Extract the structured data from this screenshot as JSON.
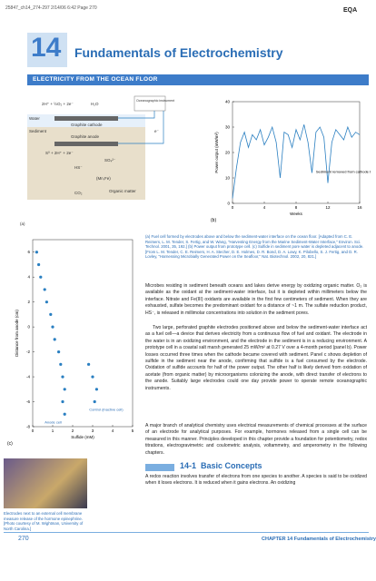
{
  "header": {
    "slug": "25847_ch14_274-297  2/14/06  6:42  Page 270",
    "code": "EQA"
  },
  "chapter": {
    "number": "14",
    "title": "Fundamentals of Electrochemistry"
  },
  "box": {
    "title": "ELECTRICITY FROM THE OCEAN FLOOR",
    "diagram": {
      "panel": "(a)",
      "labels": [
        "2H⁺ + ½O₂ + 2e⁻",
        "H₂O",
        "Water",
        "Sediment",
        "Graphite cathode",
        "Graphite anode",
        "S⁰ + 2H⁺ + 2e⁻",
        "HS⁻",
        "SO₄²⁻",
        "(Mn,Fe)",
        "CO₂",
        "Organic matter",
        "Oceanographic instrument",
        "e⁻"
      ]
    },
    "caption": "(a) Fuel cell formed by electrodes above and below the sediment-water interface on the ocean floor. [Adapted from C. E. Reimers, L. M. Tender, S. Fertig, and W. Wang, \"Harvesting Energy from the Marine Sediment-Water Interface,\" Environ. Sci. Technol. 2001, 35, 192.] (b) Power output from prototype cell. (c) Sulfide in sediment pore water is depleted adjacent to anode. [From L. M. Tender, C. E. Reimers, H. A. Stecher, D. E. Holmes, D. R. Bond, D. A. Lowy, K. Pilobello, S. J. Fertig, and D. R. Lovley, \"Harnessing Microbially Generated Power on the Seafloor,\" Nat. Biotechnol. 2002, 20, 821.]",
    "paragraphs": [
      "Microbes residing in sediment beneath oceans and lakes derive energy by oxidizing organic matter. O₂ is available as the oxidant at the sediment-water interface, but it is depleted within millimeters below the interface. Nitrate and Fe(III) oxidants are available in the first few centimeters of sediment. When they are exhausted, sulfate becomes the predominant oxidant for a distance of ~1 m. The sulfate reduction product, HS⁻, is released in millimolar concentrations into solution in the sediment pores.",
      "Two large, perforated graphite electrodes positioned above and below the sediment-water interface act as a fuel cell—a device that derives electricity from a continuous flow of fuel and oxidant. The electrode in the water is in an oxidizing environment, and the electrode in the sediment is in a reducing environment. A prototype cell in a coastal salt marsh generated 25 mW/m² at 0.27 V over a 4-month period (panel b). Power losses occurred three times when the cathode became covered with sediment. Panel c shows depletion of sulfide in the sediment near the anode, confirming that sulfide is a fuel consumed by the electrode. Oxidation of sulfide accounts for half of the power output. The other half is likely derived from oxidation of acetate (from organic matter) by microorganisms colonizing the anode, with direct transfer of electrons to the anode. Suitably large electrodes could one day provide power to operate remote oceanographic instruments."
    ]
  },
  "chart_data": [
    {
      "type": "line",
      "panel": "(b)",
      "ylabel": "Power output (mW/m²)",
      "xlabel": "Weeks",
      "annotation": "Sediment removed from cathode by diver",
      "color": "#2a7fc1",
      "x": [
        0,
        0.5,
        1,
        1.5,
        2,
        2.5,
        3,
        3.5,
        4,
        4.5,
        5,
        5.5,
        6,
        6.5,
        7,
        7.5,
        8,
        8.5,
        9,
        9.5,
        10,
        10.5,
        11,
        11.5,
        12,
        12.5,
        13,
        13.5,
        14,
        14.5,
        15,
        15.5,
        16
      ],
      "values": [
        2,
        14,
        24,
        28,
        22,
        27,
        25,
        29,
        23,
        26,
        30,
        24,
        10,
        28,
        27,
        22,
        29,
        25,
        31,
        24,
        12,
        28,
        30,
        26,
        8,
        24,
        29,
        27,
        25,
        30,
        26,
        28,
        27
      ],
      "xlim": [
        0,
        16
      ],
      "xticks": [
        0,
        4,
        8,
        12,
        16
      ],
      "ylim": [
        0,
        40
      ],
      "yticks": [
        0,
        10,
        20,
        30,
        40
      ]
    },
    {
      "type": "scatter",
      "panel": "(c)",
      "ylabel": "Distance from anode (cm)",
      "xlabel": "Sulfide (mM)",
      "series": [
        {
          "name": "Anode cell",
          "color": "#2a7fc1",
          "x": [
            0.2,
            0.3,
            0.4,
            0.6,
            0.7,
            0.9,
            1.0,
            1.1,
            1.3,
            1.4,
            1.5,
            1.6,
            1.5,
            1.6
          ],
          "values": [
            6,
            5,
            4,
            3,
            2,
            1,
            0,
            -1,
            -2,
            -3,
            -4,
            -5,
            -6,
            -7
          ]
        },
        {
          "name": "Control (inactive cell)",
          "color": "#2a7fc1",
          "x": [
            2.8,
            3.0,
            3.2,
            3.1
          ],
          "values": [
            -3,
            -4,
            -5,
            -6
          ]
        }
      ],
      "xlim": [
        0,
        5
      ],
      "xticks": [
        0,
        1,
        2,
        3,
        4,
        5
      ],
      "ylim": [
        -8,
        7
      ],
      "yticks": [
        6,
        4,
        2,
        0,
        -2,
        -4,
        -6,
        -8
      ]
    }
  ],
  "intro": "A major branch of analytical chemistry uses electrical measurements of chemical processes at the surface of an electrode for analytical purposes. For example, hormones released from a single cell can be measured in this manner. Principles developed in this chapter provide a foundation for potentiometry, redox titrations, electrogravimetric and coulometric analysis, voltammetry, and amperometry in the following chapters.",
  "photo_caption": "Electrodes next to an external cell membrane measure release of the hormone epinephrine. [Photo courtesy of M. Wightman, University of North Carolina.]",
  "section": {
    "number": "14-1",
    "title": "Basic Concepts",
    "text": "A redox reaction involves transfer of electrons from one species to another. A species is said to be oxidized when it loses electrons. It is reduced when it gains electrons. An oxidizing"
  },
  "footer": {
    "page": "270",
    "running": "CHAPTER 14  Fundamentals of Electrochemistry"
  }
}
